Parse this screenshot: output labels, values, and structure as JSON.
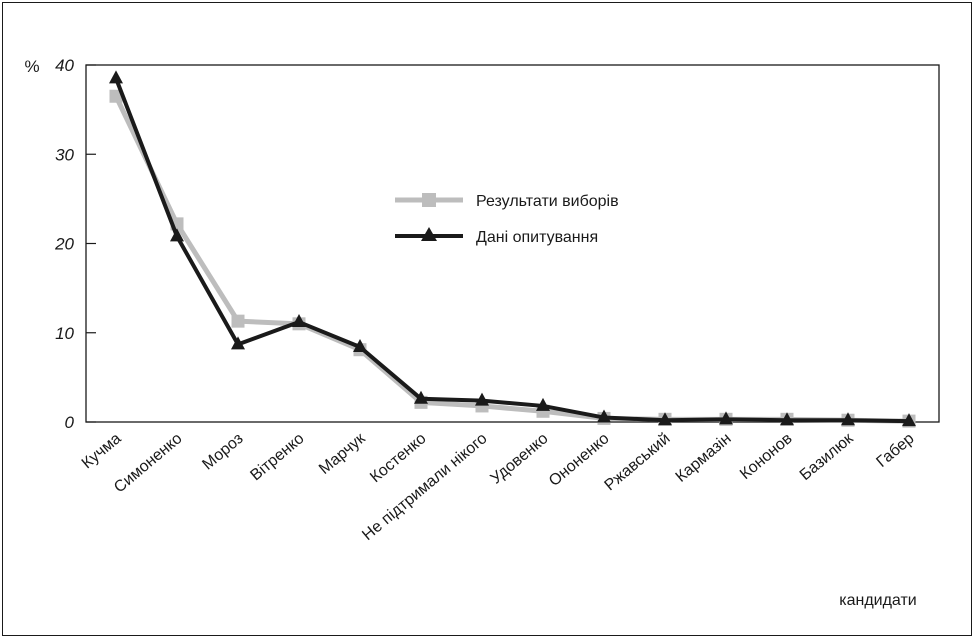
{
  "chart_data": {
    "type": "line",
    "ylabel": "%",
    "xlabel": "кандидати",
    "ylim": [
      0,
      40
    ],
    "yticks": [
      0,
      10,
      20,
      30,
      40
    ],
    "grid": false,
    "legend_position": "center",
    "categories": [
      "Кучма",
      "Симоненко",
      "Мороз",
      "Вітренко",
      "Марчук",
      "Костенко",
      "Не підтримали нікого",
      "Удовенко",
      "Ононенко",
      "Ржавський",
      "Кармазін",
      "Кононов",
      "Базилюк",
      "Габер"
    ],
    "series": [
      {
        "name": "Результати виборів",
        "color": "#bdbdbd",
        "marker": "square",
        "values": [
          36.5,
          22.2,
          11.3,
          11.0,
          8.1,
          2.2,
          1.8,
          1.2,
          0.4,
          0.3,
          0.3,
          0.3,
          0.2,
          0.1
        ]
      },
      {
        "name": "Дані опитування",
        "color": "#1a1a1a",
        "marker": "triangle",
        "values": [
          38.5,
          20.8,
          8.7,
          11.2,
          8.4,
          2.6,
          2.4,
          1.8,
          0.5,
          0.2,
          0.3,
          0.2,
          0.2,
          0.1
        ]
      }
    ]
  }
}
